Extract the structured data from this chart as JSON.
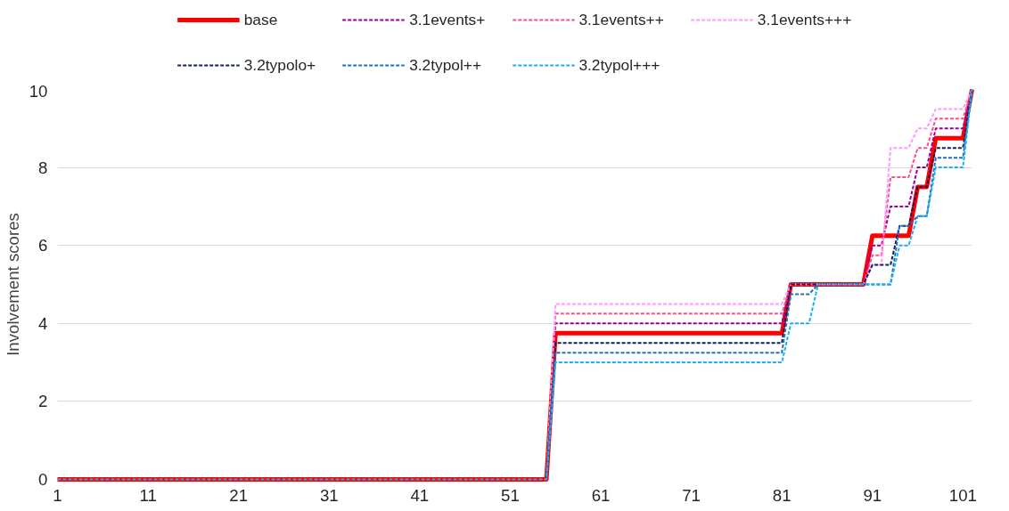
{
  "chart_data": {
    "type": "line",
    "ylabel": "Involvement scores",
    "x": [
      1,
      2,
      3,
      4,
      5,
      6,
      7,
      8,
      9,
      10,
      11,
      12,
      13,
      14,
      15,
      16,
      17,
      18,
      19,
      20,
      21,
      22,
      23,
      24,
      25,
      26,
      27,
      28,
      29,
      30,
      31,
      32,
      33,
      34,
      35,
      36,
      37,
      38,
      39,
      40,
      41,
      42,
      43,
      44,
      45,
      46,
      47,
      48,
      49,
      50,
      51,
      52,
      53,
      54,
      55,
      56,
      57,
      58,
      59,
      60,
      61,
      62,
      63,
      64,
      65,
      66,
      67,
      68,
      69,
      70,
      71,
      72,
      73,
      74,
      75,
      76,
      77,
      78,
      79,
      80,
      81,
      82,
      83,
      84,
      85,
      86,
      87,
      88,
      89,
      90,
      91,
      92,
      93,
      94,
      95,
      96,
      97,
      98,
      99,
      100,
      101,
      102
    ],
    "xlim": [
      1,
      102
    ],
    "xticks": [
      1,
      11,
      21,
      31,
      41,
      51,
      61,
      71,
      81,
      91,
      101
    ],
    "ylim": [
      0,
      10
    ],
    "yticks": [
      0,
      2,
      4,
      6,
      8,
      10
    ],
    "grid": "y",
    "legend": "top",
    "marker": "none",
    "series": [
      {
        "name": "base",
        "color": "#ff0000",
        "line_style": "solid",
        "values": [
          0,
          0,
          0,
          0,
          0,
          0,
          0,
          0,
          0,
          0,
          0,
          0,
          0,
          0,
          0,
          0,
          0,
          0,
          0,
          0,
          0,
          0,
          0,
          0,
          0,
          0,
          0,
          0,
          0,
          0,
          0,
          0,
          0,
          0,
          0,
          0,
          0,
          0,
          0,
          0,
          0,
          0,
          0,
          0,
          0,
          0,
          0,
          0,
          0,
          0,
          0,
          0,
          0,
          0,
          0,
          3.75,
          3.75,
          3.75,
          3.75,
          3.75,
          3.75,
          3.75,
          3.75,
          3.75,
          3.75,
          3.75,
          3.75,
          3.75,
          3.75,
          3.75,
          3.75,
          3.75,
          3.75,
          3.75,
          3.75,
          3.75,
          3.75,
          3.75,
          3.75,
          3.75,
          3.75,
          5,
          5,
          5,
          5,
          5,
          5,
          5,
          5,
          5,
          6.25,
          6.25,
          6.25,
          6.25,
          6.25,
          7.5,
          7.5,
          8.75,
          8.75,
          8.75,
          8.75,
          10
        ]
      },
      {
        "name": "3.1events+",
        "color": "#990099",
        "line_style": "dashed",
        "values": [
          null,
          null,
          null,
          null,
          null,
          null,
          null,
          null,
          null,
          null,
          null,
          null,
          null,
          null,
          null,
          null,
          null,
          null,
          null,
          null,
          null,
          null,
          null,
          null,
          null,
          null,
          null,
          null,
          null,
          null,
          null,
          null,
          null,
          null,
          null,
          null,
          null,
          null,
          null,
          null,
          null,
          null,
          null,
          null,
          null,
          null,
          null,
          null,
          null,
          null,
          null,
          null,
          null,
          null,
          0,
          4,
          4,
          4,
          4,
          4,
          4,
          4,
          4,
          4,
          4,
          4,
          4,
          4,
          4,
          4,
          4,
          4,
          4,
          4,
          4,
          4,
          4,
          4,
          4,
          4,
          4,
          5,
          5,
          5,
          5,
          5,
          5,
          5,
          5,
          5,
          6,
          6,
          7,
          7,
          7,
          8,
          8,
          9,
          9,
          9,
          9,
          10
        ]
      },
      {
        "name": "3.1events++",
        "color": "#ff4d88",
        "line_style": "dashed",
        "values": [
          null,
          null,
          null,
          null,
          null,
          null,
          null,
          null,
          null,
          null,
          null,
          null,
          null,
          null,
          null,
          null,
          null,
          null,
          null,
          null,
          null,
          null,
          null,
          null,
          null,
          null,
          null,
          null,
          null,
          null,
          null,
          null,
          null,
          null,
          null,
          null,
          null,
          null,
          null,
          null,
          null,
          null,
          null,
          null,
          null,
          null,
          null,
          null,
          null,
          null,
          null,
          null,
          null,
          null,
          0,
          4.25,
          4.25,
          4.25,
          4.25,
          4.25,
          4.25,
          4.25,
          4.25,
          4.25,
          4.25,
          4.25,
          4.25,
          4.25,
          4.25,
          4.25,
          4.25,
          4.25,
          4.25,
          4.25,
          4.25,
          4.25,
          4.25,
          4.25,
          4.25,
          4.25,
          4.25,
          5,
          5,
          5,
          5,
          5,
          5,
          5,
          5,
          5,
          5.75,
          5.75,
          7.75,
          7.75,
          7.75,
          8.5,
          8.5,
          9.25,
          9.25,
          9.25,
          9.25,
          10
        ]
      },
      {
        "name": "3.1events+++",
        "color": "#ff99ff",
        "line_style": "dashed",
        "values": [
          null,
          null,
          null,
          null,
          null,
          null,
          null,
          null,
          null,
          null,
          null,
          null,
          null,
          null,
          null,
          null,
          null,
          null,
          null,
          null,
          null,
          null,
          null,
          null,
          null,
          null,
          null,
          null,
          null,
          null,
          null,
          null,
          null,
          null,
          null,
          null,
          null,
          null,
          null,
          null,
          null,
          null,
          null,
          null,
          null,
          null,
          null,
          null,
          null,
          null,
          null,
          null,
          null,
          null,
          0,
          4.5,
          4.5,
          4.5,
          4.5,
          4.5,
          4.5,
          4.5,
          4.5,
          4.5,
          4.5,
          4.5,
          4.5,
          4.5,
          4.5,
          4.5,
          4.5,
          4.5,
          4.5,
          4.5,
          4.5,
          4.5,
          4.5,
          4.5,
          4.5,
          4.5,
          4.5,
          5,
          5,
          5,
          5,
          5,
          5,
          5,
          5,
          5,
          5.5,
          5.5,
          8.5,
          8.5,
          8.5,
          9,
          9,
          9.5,
          9.5,
          9.5,
          9.5,
          10
        ]
      },
      {
        "name": "3.2typolo+",
        "color": "#0d1f5c",
        "line_style": "dashed",
        "values": [
          null,
          null,
          null,
          null,
          null,
          null,
          null,
          null,
          null,
          null,
          null,
          null,
          null,
          null,
          null,
          null,
          null,
          null,
          null,
          null,
          null,
          null,
          null,
          null,
          null,
          null,
          null,
          null,
          null,
          null,
          null,
          null,
          null,
          null,
          null,
          null,
          null,
          null,
          null,
          null,
          null,
          null,
          null,
          null,
          null,
          null,
          null,
          null,
          null,
          null,
          null,
          null,
          null,
          null,
          0,
          3.5,
          3.5,
          3.5,
          3.5,
          3.5,
          3.5,
          3.5,
          3.5,
          3.5,
          3.5,
          3.5,
          3.5,
          3.5,
          3.5,
          3.5,
          3.5,
          3.5,
          3.5,
          3.5,
          3.5,
          3.5,
          3.5,
          3.5,
          3.5,
          3.5,
          3.5,
          5,
          5,
          5,
          5,
          5,
          5,
          5,
          5,
          5,
          5.5,
          5.5,
          5.5,
          6.5,
          6.5,
          7.5,
          7.5,
          8.5,
          8.5,
          8.5,
          8.5,
          10
        ]
      },
      {
        "name": "3.2typol++",
        "color": "#1f6fbf",
        "line_style": "dashed",
        "values": [
          null,
          null,
          null,
          null,
          null,
          null,
          null,
          null,
          null,
          null,
          null,
          null,
          null,
          null,
          null,
          null,
          null,
          null,
          null,
          null,
          null,
          null,
          null,
          null,
          null,
          null,
          null,
          null,
          null,
          null,
          null,
          null,
          null,
          null,
          null,
          null,
          null,
          null,
          null,
          null,
          null,
          null,
          null,
          null,
          null,
          null,
          null,
          null,
          null,
          null,
          null,
          null,
          null,
          null,
          0,
          3.25,
          3.25,
          3.25,
          3.25,
          3.25,
          3.25,
          3.25,
          3.25,
          3.25,
          3.25,
          3.25,
          3.25,
          3.25,
          3.25,
          3.25,
          3.25,
          3.25,
          3.25,
          3.25,
          3.25,
          3.25,
          3.25,
          3.25,
          3.25,
          3.25,
          3.25,
          4.75,
          4.75,
          4.75,
          5,
          5,
          5,
          5,
          5,
          5,
          5,
          5,
          5,
          6.5,
          6.5,
          6.75,
          6.75,
          8.25,
          8.25,
          8.25,
          8.25,
          10
        ]
      },
      {
        "name": "3.2typol+++",
        "color": "#19b0f0",
        "line_style": "dashed",
        "values": [
          0,
          0,
          0,
          0,
          0,
          0,
          0,
          0,
          0,
          0,
          0,
          0,
          0,
          0,
          0,
          0,
          0,
          0,
          0,
          0,
          0,
          0,
          0,
          0,
          0,
          0,
          0,
          0,
          0,
          0,
          0,
          0,
          0,
          0,
          0,
          0,
          0,
          0,
          0,
          0,
          0,
          0,
          0,
          0,
          0,
          0,
          0,
          0,
          0,
          0,
          0,
          0,
          0,
          0,
          0,
          3,
          3,
          3,
          3,
          3,
          3,
          3,
          3,
          3,
          3,
          3,
          3,
          3,
          3,
          3,
          3,
          3,
          3,
          3,
          3,
          3,
          3,
          3,
          3,
          3,
          3,
          4,
          4,
          4,
          5,
          5,
          5,
          5,
          5,
          5,
          5,
          5,
          5,
          6,
          6,
          6.75,
          6.75,
          8,
          8,
          8,
          8,
          10
        ]
      }
    ]
  }
}
